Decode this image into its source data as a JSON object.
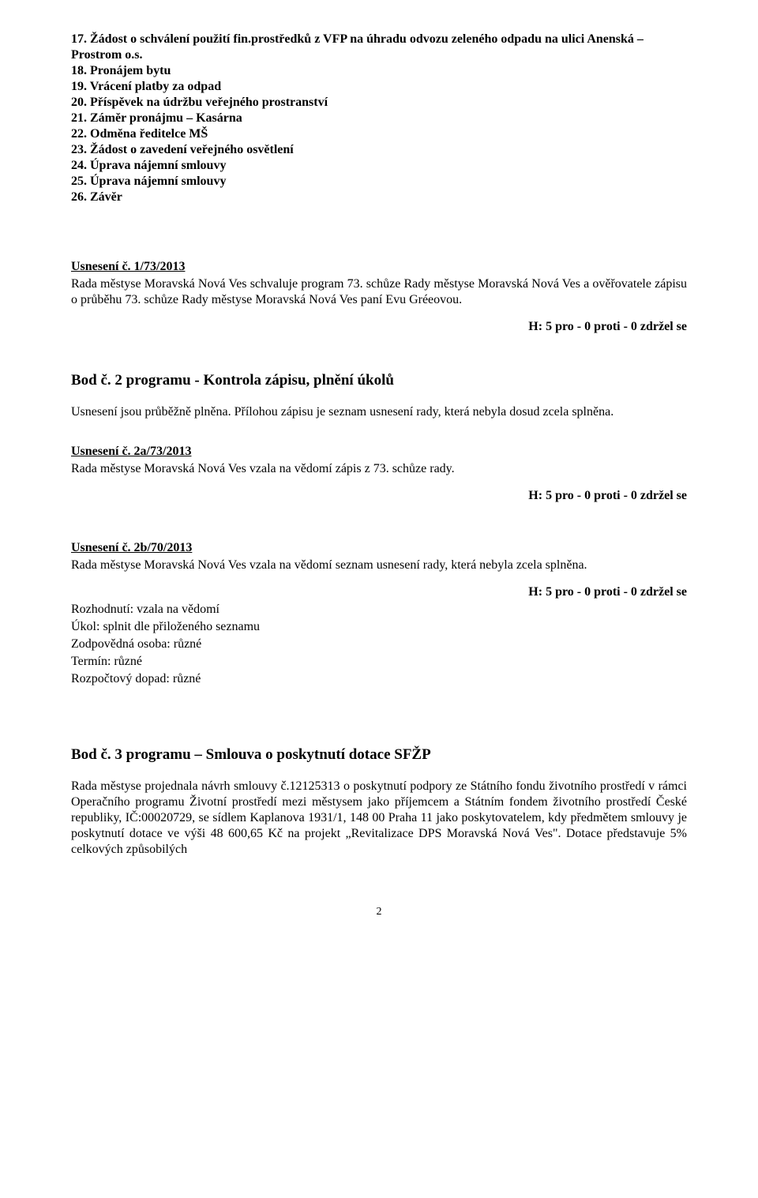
{
  "agenda": {
    "items": [
      "17. Žádost o schválení použití fin.prostředků z VFP na úhradu odvozu zeleného odpadu na ulici Anenská – Prostrom o.s.",
      "18. Pronájem bytu",
      "19. Vrácení platby za odpad",
      "20. Příspěvek na údržbu veřejného prostranství",
      "21. Záměr pronájmu – Kasárna",
      "22. Odměna ředitelce MŠ",
      "23. Žádost o zavedení veřejného osvětlení",
      "24. Úprava nájemní smlouvy",
      "25. Úprava nájemní smlouvy",
      "26. Závěr"
    ]
  },
  "usneseni1": {
    "title": "Usnesení č. 1/73/2013",
    "body": "Rada městyse Moravská Nová Ves schvaluje program 73. schůze Rady městyse Moravská Nová Ves a ověřovatele zápisu o průběhu 73. schůze Rady městyse Moravská Nová Ves paní Evu Gréeovou.",
    "vote": "H: 5 pro - 0 proti - 0 zdržel se"
  },
  "bod2": {
    "heading": "Bod č. 2 programu - Kontrola zápisu, plnění úkolů",
    "intro": "Usnesení jsou průběžně plněna. Přílohou zápisu je seznam usnesení rady, která nebyla dosud zcela splněna."
  },
  "usneseni2a": {
    "title": "Usnesení č. 2a/73/2013",
    "body": "Rada městyse Moravská Nová Ves vzala na vědomí zápis z 73. schůze rady.",
    "vote": "H: 5 pro - 0 proti - 0 zdržel se"
  },
  "usneseni2b": {
    "title": "Usnesení č. 2b/70/2013",
    "body": "Rada městyse Moravská Nová Ves vzala na vědomí seznam usnesení rady, která nebyla zcela splněna.",
    "vote": "H: 5 pro - 0 proti - 0 zdržel se",
    "lines": [
      "Rozhodnutí: vzala na vědomí",
      "Úkol: splnit dle přiloženého seznamu",
      "Zodpovědná osoba: různé",
      "Termín: různé",
      "Rozpočtový dopad: různé"
    ]
  },
  "bod3": {
    "heading": "Bod č. 3 programu – Smlouva o poskytnutí dotace SFŽP",
    "para": "Rada městyse projednala návrh smlouvy č.12125313 o poskytnutí podpory ze Státního fondu životního prostředí v rámci Operačního programu Životní prostředí mezi městysem jako příjemcem a Státním fondem životního prostředí České republiky, IČ:00020729, se sídlem Kaplanova 1931/1, 148 00 Praha 11 jako poskytovatelem, kdy předmětem smlouvy je poskytnutí dotace ve výši 48 600,65 Kč na projekt „Revitalizace DPS Moravská Nová Ves\". Dotace představuje 5% celkových způsobilých"
  },
  "pageNumber": "2"
}
